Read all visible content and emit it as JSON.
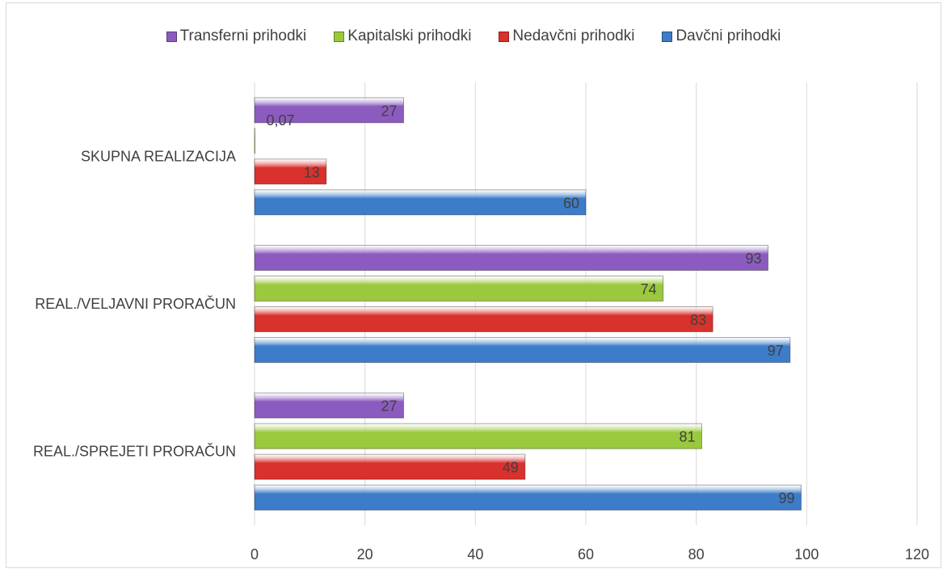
{
  "chart_data": {
    "type": "bar",
    "orientation": "horizontal",
    "categories": [
      "REAL./SPREJETI PRORAČUN",
      "REAL./VELJAVNI PRORAČUN",
      "SKUPNA REALIZACIJA"
    ],
    "series": [
      {
        "name": "Davčni prihodki",
        "color": "#3d7cc9",
        "values": [
          99,
          97,
          60
        ],
        "labels": [
          "99",
          "97",
          "60"
        ]
      },
      {
        "name": "Nedavčni prihodki",
        "color": "#d9312d",
        "values": [
          49,
          83,
          13
        ],
        "labels": [
          "49",
          "83",
          "13"
        ]
      },
      {
        "name": "Kapitalski prihodki",
        "color": "#9bc93d",
        "values": [
          81,
          74,
          0.07
        ],
        "labels": [
          "81",
          "74",
          "0,07"
        ]
      },
      {
        "name": "Transferni prihodki",
        "color": "#8c5bbf",
        "values": [
          27,
          93,
          27
        ],
        "labels": [
          "27",
          "93",
          "27"
        ]
      }
    ],
    "legend_order": [
      "Transferni prihodki",
      "Kapitalski prihodki",
      "Nedavčni prihodki",
      "Davčni prihodki"
    ],
    "legend_position": "top",
    "xlim": [
      0,
      120
    ],
    "xticks": [
      "0",
      "20",
      "40",
      "60",
      "80",
      "100",
      "120"
    ],
    "grid": true,
    "title": "",
    "xlabel": "",
    "ylabel": ""
  }
}
